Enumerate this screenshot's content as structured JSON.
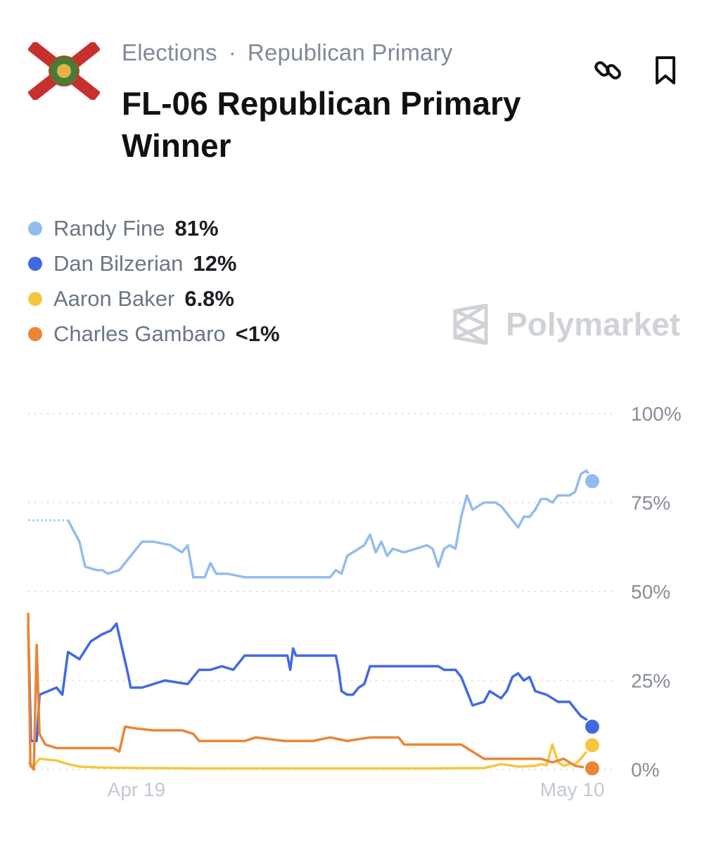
{
  "breadcrumb": {
    "category": "Elections",
    "separator": "·",
    "subcategory": "Republican Primary"
  },
  "title": "FL-06 Republican Primary Winner",
  "icons": {
    "flag": "florida-flag-icon",
    "link": "link-icon",
    "bookmark": "bookmark-icon",
    "watermark": "polymarket-logo-icon"
  },
  "watermark": {
    "text": "Polymarket"
  },
  "legend": [
    {
      "name": "Randy Fine",
      "value": "81%",
      "color": "#93bcef"
    },
    {
      "name": "Dan Bilzerian",
      "value": "12%",
      "color": "#4169e1"
    },
    {
      "name": "Aaron Baker",
      "value": "6.8%",
      "color": "#f5c73f"
    },
    {
      "name": "Charles Gambaro",
      "value": "<1%",
      "color": "#ea8536"
    }
  ],
  "chart_data": {
    "type": "line",
    "x_ticks": [
      {
        "label": "Apr 19",
        "x": 0.19
      },
      {
        "label": "May 10",
        "x": 0.955
      }
    ],
    "y_ticks": [
      {
        "label": "100%",
        "value": 100
      },
      {
        "label": "75%",
        "value": 75
      },
      {
        "label": "50%",
        "value": 50
      },
      {
        "label": "25%",
        "value": 25
      },
      {
        "label": "0%",
        "value": 0
      }
    ],
    "ylim": [
      0,
      100
    ],
    "xlim": [
      0,
      1
    ],
    "grid": true,
    "series": [
      {
        "name": "Randy Fine",
        "color": "#93bcef",
        "dashed_until": 0.07,
        "points": [
          [
            0.0,
            70
          ],
          [
            0.07,
            70
          ],
          [
            0.09,
            64
          ],
          [
            0.1,
            57
          ],
          [
            0.12,
            56
          ],
          [
            0.13,
            56
          ],
          [
            0.14,
            55
          ],
          [
            0.16,
            56
          ],
          [
            0.18,
            60
          ],
          [
            0.2,
            64
          ],
          [
            0.22,
            64
          ],
          [
            0.25,
            63
          ],
          [
            0.27,
            61
          ],
          [
            0.28,
            63
          ],
          [
            0.29,
            54
          ],
          [
            0.31,
            54
          ],
          [
            0.32,
            58
          ],
          [
            0.33,
            55
          ],
          [
            0.35,
            55
          ],
          [
            0.38,
            54
          ],
          [
            0.43,
            54
          ],
          [
            0.48,
            54
          ],
          [
            0.53,
            54
          ],
          [
            0.54,
            56
          ],
          [
            0.55,
            55
          ],
          [
            0.56,
            60
          ],
          [
            0.58,
            62
          ],
          [
            0.59,
            63
          ],
          [
            0.6,
            66
          ],
          [
            0.61,
            61
          ],
          [
            0.62,
            64
          ],
          [
            0.63,
            60
          ],
          [
            0.64,
            62
          ],
          [
            0.66,
            61
          ],
          [
            0.68,
            62
          ],
          [
            0.7,
            63
          ],
          [
            0.71,
            62
          ],
          [
            0.72,
            57
          ],
          [
            0.73,
            62
          ],
          [
            0.74,
            63
          ],
          [
            0.75,
            62
          ],
          [
            0.76,
            71
          ],
          [
            0.77,
            77
          ],
          [
            0.78,
            73
          ],
          [
            0.8,
            75
          ],
          [
            0.82,
            75
          ],
          [
            0.83,
            74
          ],
          [
            0.84,
            72
          ],
          [
            0.86,
            68
          ],
          [
            0.87,
            71
          ],
          [
            0.88,
            71
          ],
          [
            0.89,
            73
          ],
          [
            0.9,
            76
          ],
          [
            0.91,
            76
          ],
          [
            0.92,
            75
          ],
          [
            0.93,
            77
          ],
          [
            0.95,
            77
          ],
          [
            0.96,
            78
          ],
          [
            0.97,
            83
          ],
          [
            0.98,
            84
          ],
          [
            0.99,
            81
          ]
        ]
      },
      {
        "name": "Dan Bilzerian",
        "color": "#4169e1",
        "points": [
          [
            0.0,
            41
          ],
          [
            0.005,
            8
          ],
          [
            0.015,
            8
          ],
          [
            0.02,
            21
          ],
          [
            0.035,
            22
          ],
          [
            0.05,
            23
          ],
          [
            0.06,
            21
          ],
          [
            0.07,
            33
          ],
          [
            0.09,
            31
          ],
          [
            0.11,
            36
          ],
          [
            0.13,
            38
          ],
          [
            0.145,
            39
          ],
          [
            0.155,
            41
          ],
          [
            0.165,
            34
          ],
          [
            0.175,
            27
          ],
          [
            0.18,
            23
          ],
          [
            0.2,
            23
          ],
          [
            0.24,
            25
          ],
          [
            0.28,
            24
          ],
          [
            0.29,
            26
          ],
          [
            0.3,
            28
          ],
          [
            0.32,
            28
          ],
          [
            0.34,
            29
          ],
          [
            0.36,
            28
          ],
          [
            0.37,
            30
          ],
          [
            0.38,
            32
          ],
          [
            0.41,
            32
          ],
          [
            0.43,
            32
          ],
          [
            0.455,
            32
          ],
          [
            0.46,
            28
          ],
          [
            0.465,
            34
          ],
          [
            0.47,
            32
          ],
          [
            0.52,
            32
          ],
          [
            0.54,
            32
          ],
          [
            0.545,
            28
          ],
          [
            0.55,
            22
          ],
          [
            0.56,
            21
          ],
          [
            0.57,
            21
          ],
          [
            0.58,
            23
          ],
          [
            0.59,
            24
          ],
          [
            0.6,
            29
          ],
          [
            0.62,
            29
          ],
          [
            0.65,
            29
          ],
          [
            0.68,
            29
          ],
          [
            0.7,
            29
          ],
          [
            0.72,
            29
          ],
          [
            0.73,
            28
          ],
          [
            0.75,
            28
          ],
          [
            0.76,
            26
          ],
          [
            0.77,
            22
          ],
          [
            0.78,
            18
          ],
          [
            0.8,
            19
          ],
          [
            0.81,
            22
          ],
          [
            0.82,
            21
          ],
          [
            0.83,
            20
          ],
          [
            0.84,
            22
          ],
          [
            0.85,
            26
          ],
          [
            0.86,
            27
          ],
          [
            0.87,
            25
          ],
          [
            0.88,
            26
          ],
          [
            0.89,
            22
          ],
          [
            0.91,
            21
          ],
          [
            0.92,
            20
          ],
          [
            0.93,
            19
          ],
          [
            0.95,
            19
          ],
          [
            0.96,
            17
          ],
          [
            0.97,
            15
          ],
          [
            0.98,
            14
          ],
          [
            0.99,
            12
          ]
        ]
      },
      {
        "name": "Aaron Baker",
        "color": "#f5c73f",
        "points": [
          [
            0.0,
            2
          ],
          [
            0.01,
            1
          ],
          [
            0.02,
            3
          ],
          [
            0.05,
            2.5
          ],
          [
            0.07,
            1.5
          ],
          [
            0.09,
            0.8
          ],
          [
            0.12,
            0.6
          ],
          [
            0.14,
            0.5
          ],
          [
            0.2,
            0.4
          ],
          [
            0.3,
            0.3
          ],
          [
            0.5,
            0.3
          ],
          [
            0.7,
            0.3
          ],
          [
            0.8,
            0.4
          ],
          [
            0.83,
            1.5
          ],
          [
            0.86,
            0.8
          ],
          [
            0.89,
            1
          ],
          [
            0.9,
            1.5
          ],
          [
            0.91,
            1.2
          ],
          [
            0.92,
            7
          ],
          [
            0.93,
            2
          ],
          [
            0.94,
            1
          ],
          [
            0.95,
            1.5
          ],
          [
            0.96,
            1.5
          ],
          [
            0.97,
            3
          ],
          [
            0.98,
            5
          ],
          [
            0.99,
            6.8
          ]
        ]
      },
      {
        "name": "Charles Gambaro",
        "color": "#ea8536",
        "points": [
          [
            0.0,
            44
          ],
          [
            0.004,
            1
          ],
          [
            0.01,
            0
          ],
          [
            0.015,
            35
          ],
          [
            0.02,
            10
          ],
          [
            0.03,
            7
          ],
          [
            0.05,
            6
          ],
          [
            0.08,
            6
          ],
          [
            0.11,
            6
          ],
          [
            0.15,
            6
          ],
          [
            0.16,
            5
          ],
          [
            0.17,
            12
          ],
          [
            0.19,
            11.5
          ],
          [
            0.22,
            11
          ],
          [
            0.25,
            11
          ],
          [
            0.27,
            11
          ],
          [
            0.29,
            10
          ],
          [
            0.3,
            8
          ],
          [
            0.35,
            8
          ],
          [
            0.38,
            8
          ],
          [
            0.4,
            9
          ],
          [
            0.45,
            8
          ],
          [
            0.5,
            8
          ],
          [
            0.53,
            9
          ],
          [
            0.56,
            8
          ],
          [
            0.6,
            9
          ],
          [
            0.65,
            9
          ],
          [
            0.66,
            7
          ],
          [
            0.7,
            7
          ],
          [
            0.73,
            7
          ],
          [
            0.76,
            7
          ],
          [
            0.78,
            5
          ],
          [
            0.8,
            3
          ],
          [
            0.85,
            3
          ],
          [
            0.88,
            3
          ],
          [
            0.9,
            3
          ],
          [
            0.92,
            2
          ],
          [
            0.94,
            3
          ],
          [
            0.96,
            1
          ],
          [
            0.98,
            0.5
          ],
          [
            0.99,
            0.3
          ]
        ]
      }
    ]
  }
}
